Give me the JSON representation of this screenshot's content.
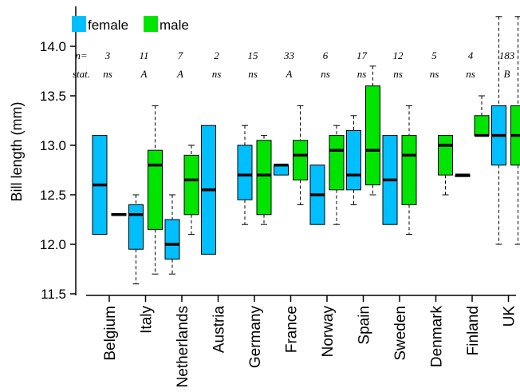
{
  "chart_data": {
    "type": "box",
    "ylabel": "Bill length (mm)",
    "ylim": [
      11.5,
      14.3
    ],
    "yticks": [
      "11.5",
      "12.0",
      "12.5",
      "13.0",
      "13.5",
      "14.0"
    ],
    "legend": {
      "placement": "top-left",
      "entries": [
        {
          "name": "female",
          "color": "#00BFFF"
        },
        {
          "name": "male",
          "color": "#00E400"
        }
      ]
    },
    "row_labels": {
      "n": "n=",
      "stat": "stat."
    },
    "categories": [
      {
        "name": "Belgium",
        "n": "3",
        "stat": "ns",
        "female": {
          "min": 12.1,
          "q1": 12.1,
          "median": 12.6,
          "q3": 13.1,
          "max": 13.1
        },
        "male": {
          "min": 12.29,
          "q1": 12.29,
          "median": 12.3,
          "q3": 12.31,
          "max": 12.31
        }
      },
      {
        "name": "Italy",
        "n": "11",
        "stat": "A",
        "female": {
          "min": 11.6,
          "q1": 11.95,
          "median": 12.3,
          "q3": 12.4,
          "max": 12.5
        },
        "male": {
          "min": 11.7,
          "q1": 12.15,
          "median": 12.8,
          "q3": 12.95,
          "max": 13.4
        }
      },
      {
        "name": "Netherlands",
        "n": "7",
        "stat": "A",
        "female": {
          "min": 11.7,
          "q1": 11.85,
          "median": 12.0,
          "q3": 12.25,
          "max": 12.5
        },
        "male": {
          "min": 12.1,
          "q1": 12.3,
          "median": 12.65,
          "q3": 12.9,
          "max": 13.0
        }
      },
      {
        "name": "Austria",
        "n": "2",
        "stat": "ns",
        "female": {
          "min": 11.9,
          "q1": 11.9,
          "median": 12.55,
          "q3": 13.2,
          "max": 13.2
        },
        "male": null
      },
      {
        "name": "Germany",
        "n": "15",
        "stat": "ns",
        "female": {
          "min": 12.2,
          "q1": 12.45,
          "median": 12.7,
          "q3": 13.0,
          "max": 13.2
        },
        "male": {
          "min": 12.2,
          "q1": 12.3,
          "median": 12.7,
          "q3": 13.05,
          "max": 13.1
        }
      },
      {
        "name": "France",
        "n": "33",
        "stat": "A",
        "female": {
          "min": 12.7,
          "q1": 12.7,
          "median": 12.8,
          "q3": 12.8,
          "max": 12.8
        },
        "male": {
          "min": 12.4,
          "q1": 12.65,
          "median": 12.9,
          "q3": 13.05,
          "max": 13.4
        }
      },
      {
        "name": "Norway",
        "n": "6",
        "stat": "ns",
        "female": {
          "min": 12.2,
          "q1": 12.2,
          "median": 12.5,
          "q3": 12.8,
          "max": 12.8
        },
        "male": {
          "min": 12.2,
          "q1": 12.55,
          "median": 12.95,
          "q3": 13.1,
          "max": 13.2
        }
      },
      {
        "name": "Spain",
        "n": "17",
        "stat": "ns",
        "female": {
          "min": 12.4,
          "q1": 12.55,
          "median": 12.7,
          "q3": 13.15,
          "max": 13.3
        },
        "male": {
          "min": 12.5,
          "q1": 12.6,
          "median": 12.95,
          "q3": 13.6,
          "max": 13.8
        }
      },
      {
        "name": "Sweden",
        "n": "12",
        "stat": "ns",
        "female": {
          "min": 12.2,
          "q1": 12.2,
          "median": 12.65,
          "q3": 13.1,
          "max": 13.1
        },
        "male": {
          "min": 12.1,
          "q1": 12.4,
          "median": 12.9,
          "q3": 13.1,
          "max": 13.4
        }
      },
      {
        "name": "Denmark",
        "n": "5",
        "stat": "ns",
        "female": null,
        "male": {
          "min": 12.5,
          "q1": 12.7,
          "median": 13.0,
          "q3": 13.1,
          "max": 13.1
        }
      },
      {
        "name": "Finland",
        "n": "4",
        "stat": "ns",
        "female": {
          "min": 12.7,
          "q1": 12.7,
          "median": 12.7,
          "q3": 12.7,
          "max": 12.7
        },
        "male": {
          "min": 13.1,
          "q1": 13.1,
          "median": 13.1,
          "q3": 13.3,
          "max": 13.5
        }
      },
      {
        "name": "UK",
        "n": "183",
        "stat": "B",
        "female": {
          "min": 12.0,
          "q1": 12.8,
          "median": 13.1,
          "q3": 13.4,
          "max": 14.3
        },
        "male": {
          "min": 12.0,
          "q1": 12.8,
          "median": 13.1,
          "q3": 13.4,
          "max": 14.3
        }
      }
    ]
  }
}
